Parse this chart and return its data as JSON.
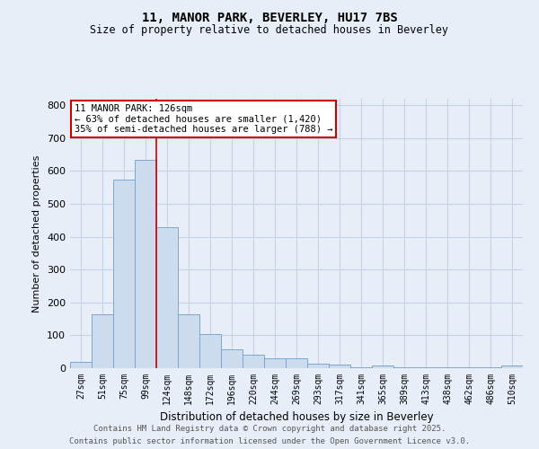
{
  "title1": "11, MANOR PARK, BEVERLEY, HU17 7BS",
  "title2": "Size of property relative to detached houses in Beverley",
  "xlabel": "Distribution of detached houses by size in Beverley",
  "ylabel": "Number of detached properties",
  "bar_labels": [
    "27sqm",
    "51sqm",
    "75sqm",
    "99sqm",
    "124sqm",
    "148sqm",
    "172sqm",
    "196sqm",
    "220sqm",
    "244sqm",
    "269sqm",
    "293sqm",
    "317sqm",
    "341sqm",
    "365sqm",
    "389sqm",
    "413sqm",
    "438sqm",
    "462sqm",
    "486sqm",
    "510sqm"
  ],
  "bar_values": [
    20,
    165,
    575,
    635,
    430,
    165,
    105,
    57,
    40,
    30,
    30,
    13,
    10,
    2,
    8,
    2,
    2,
    2,
    2,
    2,
    8
  ],
  "bar_color": "#ccdcee",
  "bar_edge_color": "#7aa8cc",
  "red_line_color": "#cc0000",
  "annotation_text": "11 MANOR PARK: 126sqm\n← 63% of detached houses are smaller (1,420)\n35% of semi-detached houses are larger (788) →",
  "annotation_box_color": "#ffffff",
  "annotation_box_edge": "#cc0000",
  "grid_color": "#c5d3e8",
  "bg_color": "#e8eef8",
  "ylim": [
    0,
    820
  ],
  "yticks": [
    0,
    100,
    200,
    300,
    400,
    500,
    600,
    700,
    800
  ],
  "footer1": "Contains HM Land Registry data © Crown copyright and database right 2025.",
  "footer2": "Contains public sector information licensed under the Open Government Licence v3.0."
}
